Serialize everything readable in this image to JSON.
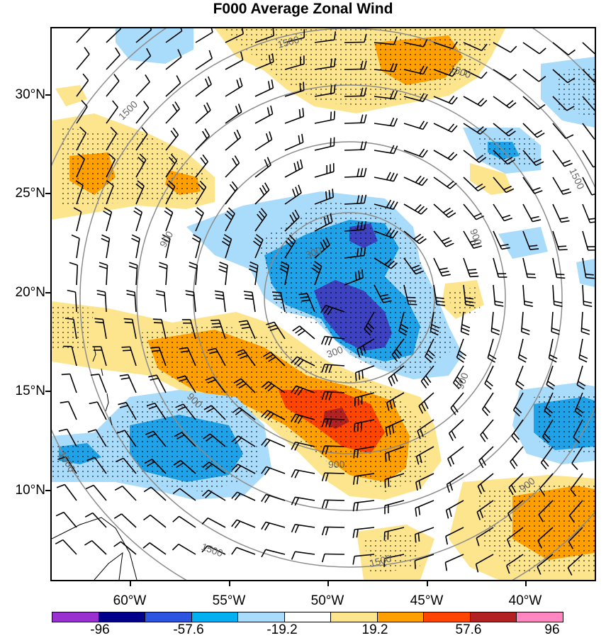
{
  "title": "F000 Average Zonal Wind",
  "y_axis_labels": [
    "30°N",
    "25°N",
    "20°N",
    "15°N",
    "10°N"
  ],
  "x_axis_labels": [
    "60°W",
    "55°W",
    "50°W",
    "45°W",
    "40°W"
  ],
  "contour_labels": [
    "1500",
    "1500",
    "1500",
    "1500",
    "1500",
    "1500",
    "1500",
    "900",
    "900",
    "900",
    "900",
    "900",
    "900",
    "300",
    "300"
  ],
  "colorbar": {
    "labels": [
      "-96",
      "-57.6",
      "-19.2",
      "19.2",
      "57.6",
      "96"
    ],
    "colors": [
      "#9b30d0",
      "#00008b",
      "#2b55e0",
      "#00b0f0",
      "#a9dcfb",
      "#ffffff",
      "#fde58e",
      "#ff9f00",
      "#ff4500",
      "#b22222",
      "#ff86c0"
    ]
  },
  "colors": {
    "strong_negative": "#3c42c0",
    "moderate_negative": "#1fa2e8",
    "weak_negative": "#a9dcfb",
    "weak_positive": "#fde58e",
    "moderate_positive": "#ff9f00",
    "strong_positive": "#ff4500",
    "peak_positive": "#b22222"
  }
}
